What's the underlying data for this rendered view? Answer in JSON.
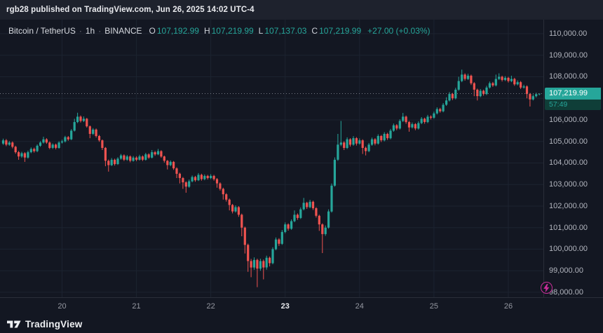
{
  "header": {
    "attribution": "rgb28 published on TradingView.com, Jun 26, 2025 14:02 UTC-4"
  },
  "legend": {
    "symbol": "Bitcoin / TetherUS",
    "interval": "1h",
    "exchange": "BINANCE",
    "sep": "·",
    "ohlc": [
      {
        "k": "O",
        "v": "107,192.99"
      },
      {
        "k": "H",
        "v": "107,219.99"
      },
      {
        "k": "L",
        "v": "107,137.03"
      },
      {
        "k": "C",
        "v": "107,219.99"
      }
    ],
    "change": "+27.00 (+0.03%)"
  },
  "colors": {
    "up": "#26a69a",
    "down": "#ef5350",
    "bg": "#131722",
    "topbar": "#1e222d",
    "grid": "#1c2330",
    "axis_text": "#b2b5be",
    "axis_border": "#2a2e39",
    "price_line": "#787b86",
    "countdown_bg": "#0f3e38",
    "badge": "#cb2d9b"
  },
  "price_scale": {
    "ticks": [
      {
        "p": 110000,
        "label": "110,000.00"
      },
      {
        "p": 109000,
        "label": "109,000.00"
      },
      {
        "p": 108000,
        "label": "108,000.00"
      },
      {
        "p": 107000,
        "label": "107,000.00"
      },
      {
        "p": 106000,
        "label": "106,000.00"
      },
      {
        "p": 105000,
        "label": "105,000.00"
      },
      {
        "p": 104000,
        "label": "104,000.00"
      },
      {
        "p": 103000,
        "label": "103,000.00"
      },
      {
        "p": 102000,
        "label": "102,000.00"
      },
      {
        "p": 101000,
        "label": "101,000.00"
      },
      {
        "p": 100000,
        "label": "100,000.00"
      },
      {
        "p": 99000,
        "label": "99,000.00"
      },
      {
        "p": 98000,
        "label": "98,000.00"
      }
    ],
    "last": {
      "p": 107219.99,
      "label": "107,219.99",
      "countdown": "57:49"
    }
  },
  "time_scale": {
    "labels": [
      {
        "i": 19,
        "t": "20",
        "bold": false
      },
      {
        "i": 43,
        "t": "21",
        "bold": false
      },
      {
        "i": 67,
        "t": "22",
        "bold": false
      },
      {
        "i": 91,
        "t": "23",
        "bold": true
      },
      {
        "i": 115,
        "t": "24",
        "bold": false
      },
      {
        "i": 139,
        "t": "25",
        "bold": false
      },
      {
        "i": 163,
        "t": "26",
        "bold": false
      }
    ]
  },
  "footer": {
    "brand": "TradingView"
  },
  "chart_data": {
    "type": "candlestick",
    "title": "Bitcoin / TetherUS · 1h · BINANCE",
    "symbol": "Bitcoin / TetherUS",
    "interval": "1h",
    "exchange": "BINANCE",
    "last": {
      "open": 107192.99,
      "high": 107219.99,
      "low": 107137.03,
      "close": 107219.99,
      "change": "+27.00",
      "change_pct": "+0.03%",
      "countdown": "57:49"
    },
    "y_axis": {
      "min": 98000,
      "max": 110000,
      "tick_step": 1000,
      "visible_range": [
        97700,
        110650
      ]
    },
    "x_axis": {
      "unit": "day-of-June-2025",
      "day_labels": [
        "20",
        "21",
        "22",
        "23",
        "24",
        "25",
        "26"
      ],
      "day_start_indices": [
        19,
        43,
        67,
        91,
        115,
        139,
        163
      ],
      "week_start_label": "23"
    },
    "candle_format": [
      "open",
      "high",
      "low",
      "close"
    ],
    "candles": [
      [
        104900,
        105130,
        104840,
        105050
      ],
      [
        105050,
        105110,
        104780,
        104850
      ],
      [
        104850,
        105020,
        104800,
        104950
      ],
      [
        104950,
        105000,
        104680,
        104750
      ],
      [
        104750,
        104800,
        104430,
        104500
      ],
      [
        104500,
        104560,
        104150,
        104300
      ],
      [
        104300,
        104520,
        104240,
        104450
      ],
      [
        104450,
        104500,
        104050,
        104250
      ],
      [
        104250,
        104570,
        104200,
        104500
      ],
      [
        104500,
        104720,
        104450,
        104650
      ],
      [
        104650,
        104710,
        104480,
        104550
      ],
      [
        104550,
        104860,
        104500,
        104800
      ],
      [
        104800,
        105010,
        104750,
        104950
      ],
      [
        104950,
        105220,
        104900,
        105100
      ],
      [
        105100,
        105150,
        104890,
        104950
      ],
      [
        104950,
        105000,
        104640,
        104700
      ],
      [
        104700,
        104910,
        104650,
        104850
      ],
      [
        104850,
        104900,
        104630,
        104700
      ],
      [
        104700,
        105010,
        104660,
        104950
      ],
      [
        104950,
        105080,
        104900,
        105000
      ],
      [
        105000,
        105260,
        104950,
        105200
      ],
      [
        105200,
        105250,
        105030,
        105100
      ],
      [
        105100,
        105570,
        105060,
        105500
      ],
      [
        105500,
        106050,
        105460,
        105900
      ],
      [
        105900,
        106330,
        105850,
        106150
      ],
      [
        106150,
        106200,
        105880,
        105950
      ],
      [
        105950,
        106160,
        105900,
        106050
      ],
      [
        106050,
        106090,
        105640,
        105700
      ],
      [
        105700,
        105740,
        105150,
        105350
      ],
      [
        105350,
        105620,
        105300,
        105550
      ],
      [
        105550,
        105600,
        105180,
        105250
      ],
      [
        105250,
        105300,
        104980,
        105050
      ],
      [
        105050,
        105090,
        104600,
        104700
      ],
      [
        104700,
        104740,
        103850,
        104100
      ],
      [
        104100,
        104160,
        103600,
        103900
      ],
      [
        103900,
        104230,
        103860,
        104150
      ],
      [
        104150,
        104200,
        103880,
        103950
      ],
      [
        103950,
        104270,
        103910,
        104200
      ],
      [
        104200,
        104420,
        104150,
        104350
      ],
      [
        104350,
        104400,
        104090,
        104150
      ],
      [
        104150,
        104370,
        104100,
        104300
      ],
      [
        104300,
        104350,
        104030,
        104100
      ],
      [
        104100,
        104320,
        104060,
        104250
      ],
      [
        104250,
        104310,
        104080,
        104150
      ],
      [
        104150,
        104380,
        104110,
        104300
      ],
      [
        104300,
        104350,
        104090,
        104150
      ],
      [
        104150,
        104470,
        104110,
        104400
      ],
      [
        104400,
        104450,
        104190,
        104250
      ],
      [
        104250,
        104600,
        104210,
        104500
      ],
      [
        104500,
        104560,
        104330,
        104400
      ],
      [
        104400,
        104650,
        104360,
        104550
      ],
      [
        104550,
        104590,
        104240,
        104300
      ],
      [
        104300,
        104340,
        104020,
        104100
      ],
      [
        104100,
        104140,
        103700,
        103900
      ],
      [
        103900,
        104120,
        103850,
        104050
      ],
      [
        104050,
        104090,
        103680,
        103750
      ],
      [
        103750,
        103800,
        103300,
        103500
      ],
      [
        103500,
        103550,
        103050,
        103300
      ],
      [
        103300,
        103350,
        102800,
        103100
      ],
      [
        103100,
        103150,
        102620,
        102900
      ],
      [
        102900,
        103230,
        102850,
        103150
      ],
      [
        103150,
        103420,
        103100,
        103350
      ],
      [
        103350,
        103400,
        103130,
        103200
      ],
      [
        103200,
        103530,
        103160,
        103450
      ],
      [
        103450,
        103500,
        103180,
        103250
      ],
      [
        103250,
        103470,
        103200,
        103400
      ],
      [
        103400,
        103450,
        103230,
        103300
      ],
      [
        103300,
        103480,
        103250,
        103400
      ],
      [
        103400,
        103450,
        103180,
        103250
      ],
      [
        103250,
        103300,
        102850,
        103050
      ],
      [
        103050,
        103100,
        102720,
        102800
      ],
      [
        102800,
        102850,
        102300,
        102550
      ],
      [
        102550,
        102600,
        102210,
        102300
      ],
      [
        102300,
        102350,
        101800,
        102050
      ],
      [
        102050,
        102100,
        101660,
        101750
      ],
      [
        101750,
        102030,
        101700,
        101950
      ],
      [
        101950,
        102000,
        101500,
        101600
      ],
      [
        101600,
        101650,
        100600,
        101000
      ],
      [
        101000,
        101050,
        99800,
        100200
      ],
      [
        100200,
        100260,
        98950,
        99450
      ],
      [
        99450,
        99550,
        98700,
        99150
      ],
      [
        99150,
        99620,
        99050,
        99500
      ],
      [
        99500,
        99560,
        98240,
        99100
      ],
      [
        99100,
        99560,
        99000,
        99450
      ],
      [
        99450,
        99520,
        98600,
        99150
      ],
      [
        99150,
        99700,
        99050,
        99600
      ],
      [
        99600,
        99660,
        99200,
        99350
      ],
      [
        99350,
        100090,
        99300,
        100000
      ],
      [
        100000,
        100540,
        99950,
        100450
      ],
      [
        100450,
        100510,
        100150,
        100250
      ],
      [
        100250,
        100890,
        100200,
        100800
      ],
      [
        100800,
        101240,
        100740,
        101150
      ],
      [
        101150,
        101200,
        100860,
        100950
      ],
      [
        100950,
        101380,
        100900,
        101300
      ],
      [
        101300,
        101800,
        101250,
        101600
      ],
      [
        101600,
        101660,
        101360,
        101450
      ],
      [
        101450,
        101940,
        101400,
        101850
      ],
      [
        101850,
        102380,
        101800,
        102150
      ],
      [
        102150,
        102200,
        101870,
        101950
      ],
      [
        101950,
        102290,
        101900,
        102200
      ],
      [
        102200,
        102250,
        101820,
        101900
      ],
      [
        101900,
        101950,
        101470,
        101550
      ],
      [
        101550,
        101600,
        100850,
        101150
      ],
      [
        101150,
        101200,
        99820,
        100700
      ],
      [
        100700,
        101100,
        100620,
        101000
      ],
      [
        101000,
        101850,
        100950,
        101750
      ],
      [
        101750,
        103050,
        101700,
        102950
      ],
      [
        102950,
        104260,
        102900,
        104150
      ],
      [
        104150,
        105350,
        104100,
        104850
      ],
      [
        104850,
        105950,
        104780,
        104950
      ],
      [
        104950,
        105010,
        104600,
        104700
      ],
      [
        104700,
        105190,
        104650,
        105100
      ],
      [
        105100,
        105150,
        104760,
        104850
      ],
      [
        104850,
        105240,
        104800,
        105150
      ],
      [
        105150,
        105200,
        104810,
        104900
      ],
      [
        104900,
        105140,
        104850,
        105050
      ],
      [
        105050,
        105100,
        104420,
        104700
      ],
      [
        104700,
        104760,
        104350,
        104550
      ],
      [
        104550,
        104930,
        104500,
        104850
      ],
      [
        104850,
        105180,
        104800,
        105100
      ],
      [
        105100,
        105150,
        104820,
        104900
      ],
      [
        104900,
        105330,
        104850,
        105250
      ],
      [
        105250,
        105300,
        104970,
        105050
      ],
      [
        105050,
        105430,
        105000,
        105350
      ],
      [
        105350,
        105400,
        105070,
        105150
      ],
      [
        105150,
        105580,
        105100,
        105500
      ],
      [
        105500,
        105830,
        105450,
        105750
      ],
      [
        105750,
        105800,
        105520,
        105600
      ],
      [
        105600,
        106030,
        105550,
        105950
      ],
      [
        105950,
        106320,
        105900,
        106150
      ],
      [
        106150,
        106200,
        105820,
        105900
      ],
      [
        105900,
        105950,
        105450,
        105650
      ],
      [
        105650,
        105880,
        105600,
        105800
      ],
      [
        105800,
        105850,
        105520,
        105600
      ],
      [
        105600,
        105930,
        105550,
        105850
      ],
      [
        105850,
        106130,
        105800,
        106050
      ],
      [
        106050,
        106100,
        105820,
        105900
      ],
      [
        105900,
        106230,
        105850,
        106150
      ],
      [
        106150,
        106210,
        106020,
        106100
      ],
      [
        106100,
        106380,
        106050,
        106300
      ],
      [
        106300,
        106580,
        106250,
        106500
      ],
      [
        106500,
        106560,
        106330,
        106400
      ],
      [
        106400,
        106780,
        106350,
        106700
      ],
      [
        106700,
        107050,
        106650,
        106900
      ],
      [
        106900,
        107290,
        106850,
        107200
      ],
      [
        107200,
        107250,
        106920,
        107000
      ],
      [
        107000,
        107490,
        106950,
        107400
      ],
      [
        107400,
        108000,
        107350,
        107800
      ],
      [
        107800,
        108330,
        107750,
        108100
      ],
      [
        108100,
        108160,
        107820,
        107900
      ],
      [
        107900,
        108140,
        107850,
        108050
      ],
      [
        108050,
        108100,
        107620,
        107700
      ],
      [
        107700,
        107750,
        107100,
        107400
      ],
      [
        107400,
        107450,
        106900,
        107100
      ],
      [
        107100,
        107430,
        107050,
        107350
      ],
      [
        107350,
        107400,
        107120,
        107200
      ],
      [
        107200,
        107580,
        107150,
        107500
      ],
      [
        107500,
        107780,
        107450,
        107700
      ],
      [
        107700,
        107760,
        107530,
        107600
      ],
      [
        107600,
        108100,
        107550,
        107900
      ],
      [
        107900,
        108160,
        107850,
        108000
      ],
      [
        108000,
        108050,
        107780,
        107850
      ],
      [
        107850,
        108030,
        107800,
        107950
      ],
      [
        107950,
        108000,
        107730,
        107800
      ],
      [
        107800,
        108050,
        107750,
        107900
      ],
      [
        107900,
        107950,
        107580,
        107650
      ],
      [
        107650,
        107830,
        107600,
        107750
      ],
      [
        107750,
        107800,
        107430,
        107500
      ],
      [
        107500,
        107630,
        107450,
        107550
      ],
      [
        107550,
        107600,
        107000,
        107200
      ],
      [
        107200,
        107250,
        106620,
        106950
      ],
      [
        106950,
        107180,
        106900,
        107100
      ],
      [
        107100,
        107260,
        107040,
        107193
      ],
      [
        107192.99,
        107219.99,
        107137.03,
        107219.99
      ]
    ]
  }
}
